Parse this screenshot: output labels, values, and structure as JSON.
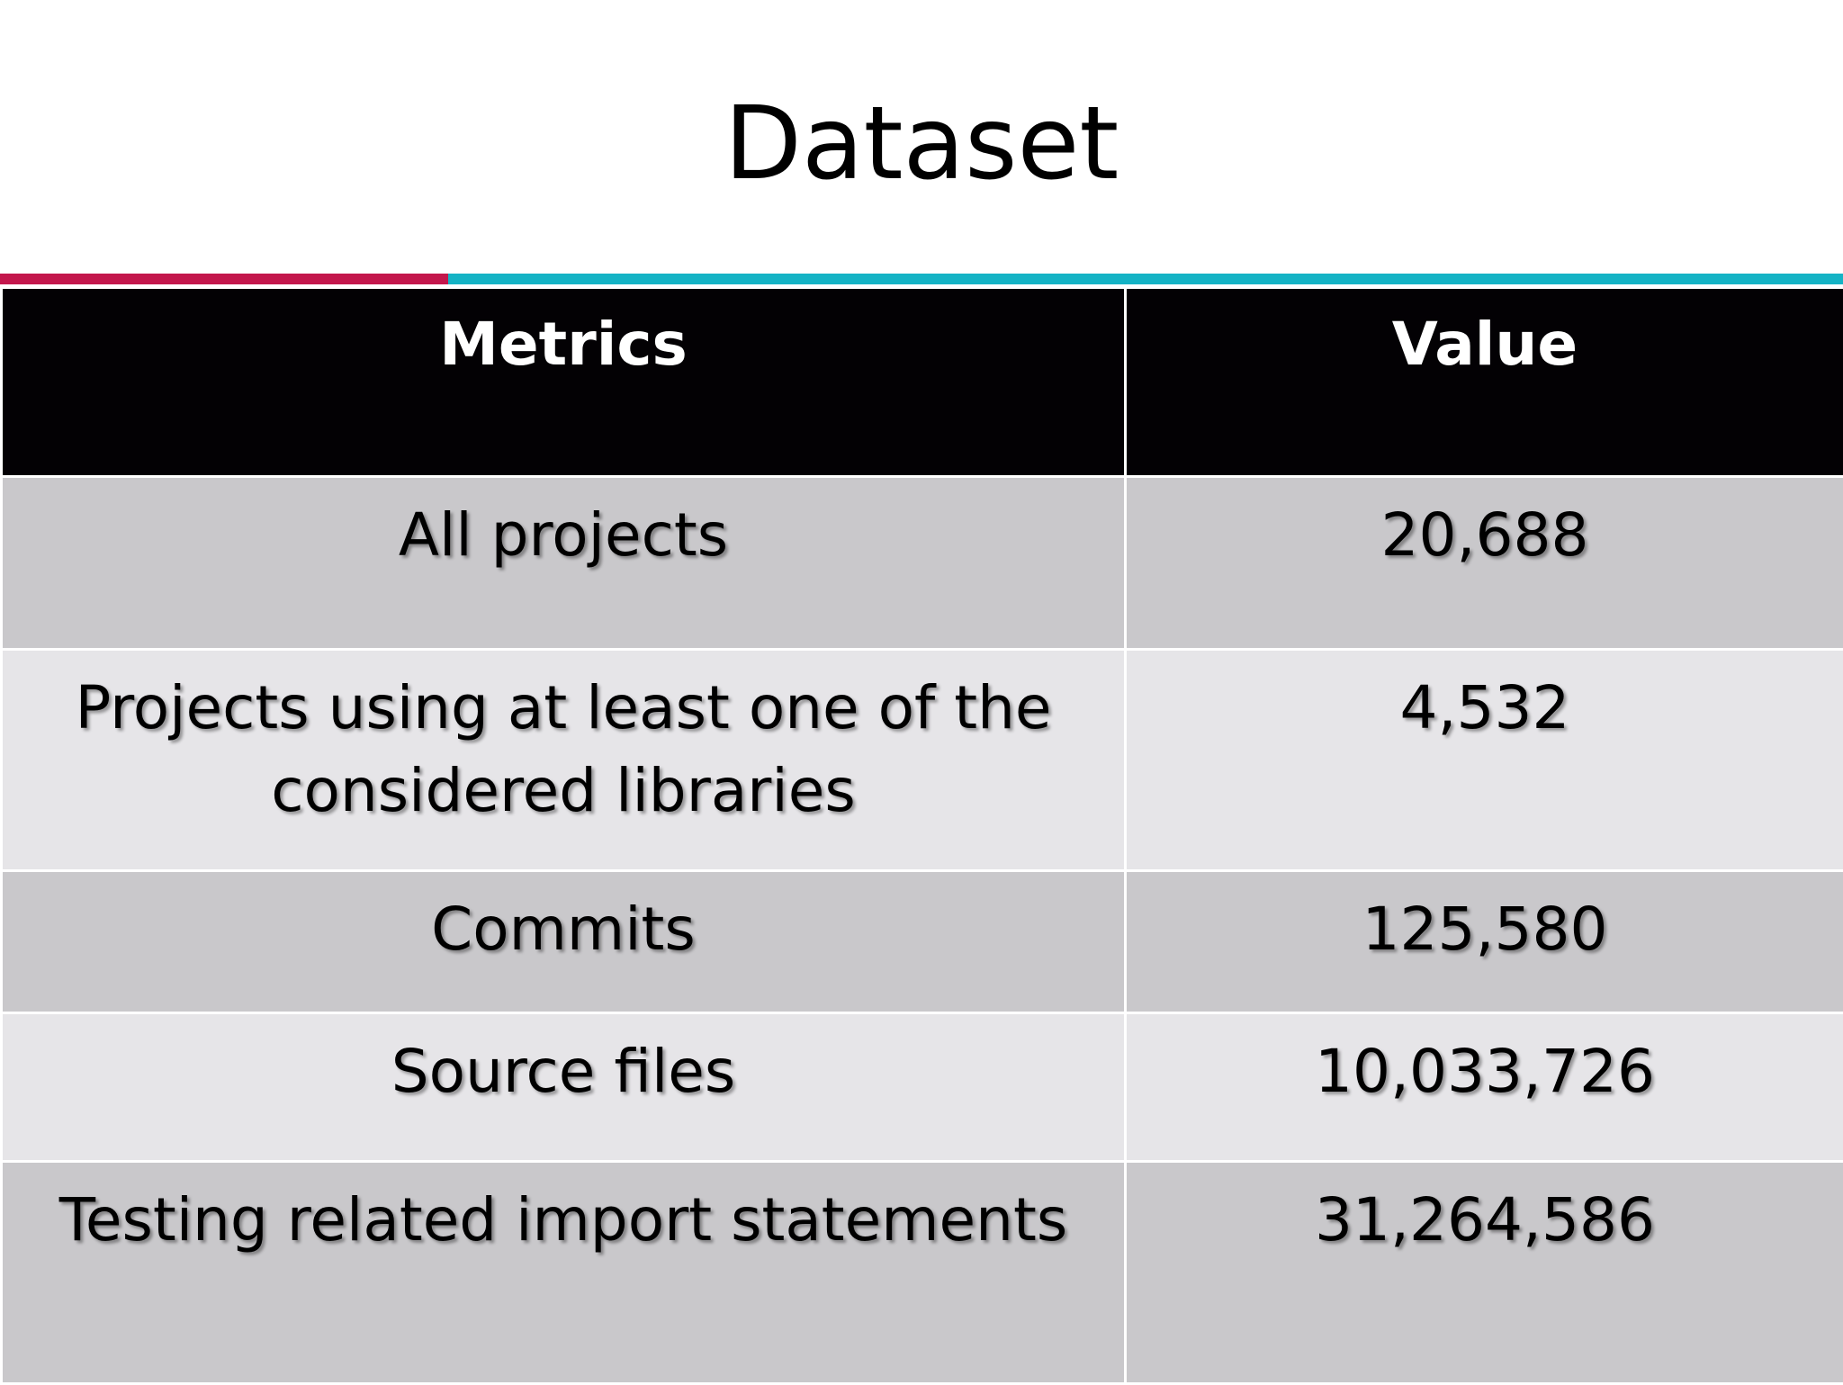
{
  "slide": {
    "title": "Dataset"
  },
  "table": {
    "headers": {
      "metric": "Metrics",
      "value": "Value"
    },
    "rows": [
      {
        "metric": "All projects",
        "value": "20,688"
      },
      {
        "metric": "Projects using at least one of the considered libraries",
        "value": "4,532"
      },
      {
        "metric": "Commits",
        "value": "125,580"
      },
      {
        "metric": "Source files",
        "value": "10,033,726"
      },
      {
        "metric": "Testing related import statements",
        "value": "31,264,586"
      }
    ]
  },
  "colors": {
    "accent_left": "#c3174c",
    "accent_right": "#14b3c5",
    "header_bg": "#030104",
    "row_dark": "#c9c8cb",
    "row_light": "#e6e5e8"
  }
}
